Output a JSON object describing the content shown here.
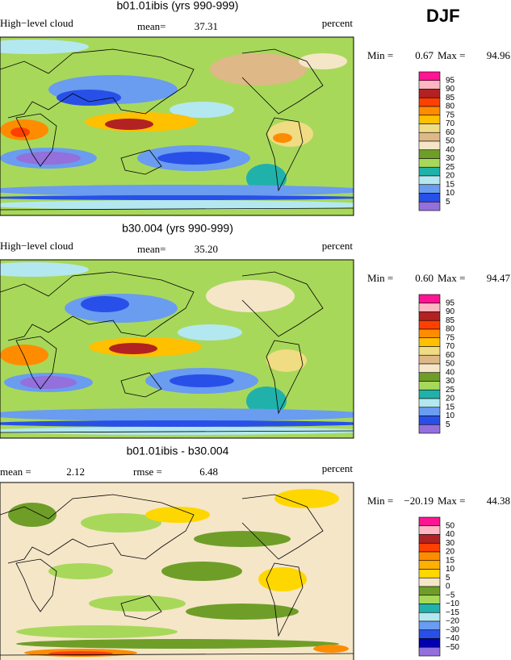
{
  "season": "DJF",
  "panels": [
    {
      "title": "b01.01ibis (yrs 990-999)",
      "field": "High−level cloud",
      "stats": [
        {
          "label": "mean=",
          "value": "37.31"
        }
      ],
      "units": "percent",
      "range": {
        "min_label": "Min =",
        "min": "0.67",
        "max_label": "Max =",
        "max": "94.96"
      },
      "legend_labels": [
        "95",
        "90",
        "85",
        "80",
        "75",
        "70",
        "60",
        "50",
        "40",
        "30",
        "25",
        "20",
        "15",
        "10",
        "5"
      ],
      "legend_colors": [
        "#ff1493",
        "#ffb6c1",
        "#b22222",
        "#ff4000",
        "#ff8c00",
        "#ffc000",
        "#f0dc82",
        "#deb887",
        "#f5e6c8",
        "#6e9e28",
        "#a8d85a",
        "#20b2aa",
        "#b4e8f0",
        "#6a9cf0",
        "#2850e8",
        "#9370db"
      ]
    },
    {
      "title": "b30.004 (yrs 990-999)",
      "field": "High−level cloud",
      "stats": [
        {
          "label": "mean=",
          "value": "35.20"
        }
      ],
      "units": "percent",
      "range": {
        "min_label": "Min =",
        "min": "0.60",
        "max_label": "Max =",
        "max": "94.47"
      },
      "legend_labels": [
        "95",
        "90",
        "85",
        "80",
        "75",
        "70",
        "60",
        "50",
        "40",
        "30",
        "25",
        "20",
        "15",
        "10",
        "5"
      ],
      "legend_colors": [
        "#ff1493",
        "#ffb6c1",
        "#b22222",
        "#ff4000",
        "#ff8c00",
        "#ffc000",
        "#f0dc82",
        "#deb887",
        "#f5e6c8",
        "#6e9e28",
        "#a8d85a",
        "#20b2aa",
        "#b4e8f0",
        "#6a9cf0",
        "#2850e8",
        "#9370db"
      ]
    },
    {
      "title": "b01.01ibis - b30.004",
      "stats": [
        {
          "label": "mean =",
          "value": "2.12"
        },
        {
          "label": "rmse =",
          "value": "6.48"
        }
      ],
      "units": "percent",
      "range": {
        "min_label": "Min =",
        "min": "−20.19",
        "max_label": "Max =",
        "max": "44.38"
      },
      "legend_labels": [
        "50",
        "40",
        "30",
        "20",
        "15",
        "10",
        "5",
        "0",
        "−5",
        "−10",
        "−15",
        "−20",
        "−30",
        "−40",
        "−50"
      ],
      "legend_colors": [
        "#ff1493",
        "#ffb6c1",
        "#b22222",
        "#ff4000",
        "#ff8c00",
        "#ffb000",
        "#ffd700",
        "#f5e6c8",
        "#6e9e28",
        "#a8d85a",
        "#20b2aa",
        "#b4e8f0",
        "#6a9cf0",
        "#2850e8",
        "#0000b0",
        "#9370db"
      ]
    }
  ]
}
